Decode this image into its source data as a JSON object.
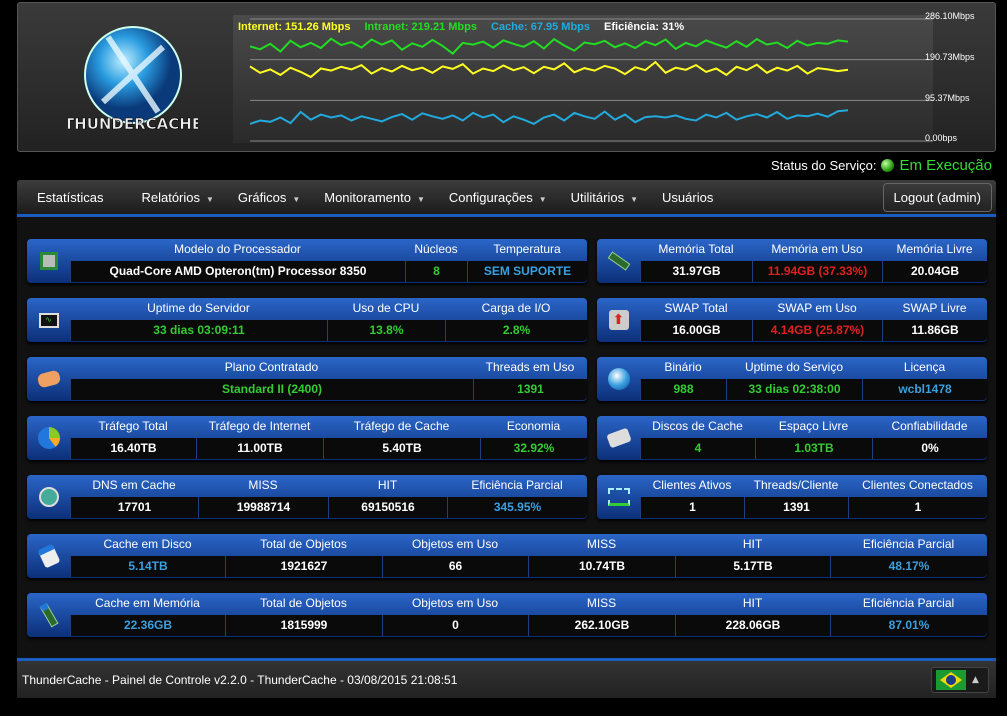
{
  "header": {
    "logo_text": "THUNDERCACHE",
    "legend": [
      {
        "label": "Internet: 151.26 Mbps",
        "color": "#ffff22"
      },
      {
        "label": "Intranet: 219.21 Mbps",
        "color": "#22dd22"
      },
      {
        "label": "Cache: 67.95 Mbps",
        "color": "#22aadd"
      },
      {
        "label": "Eficiência: 31%",
        "color": "#ffffff"
      }
    ],
    "y_labels": [
      "286.10Mbps",
      "190.73Mbps",
      "95.37Mbps",
      "0.00bps"
    ]
  },
  "chart_data": {
    "type": "line",
    "ylim": [
      0,
      286.1
    ],
    "yticks": [
      "286.10Mbps",
      "190.73Mbps",
      "95.37Mbps",
      "0.00bps"
    ],
    "grid": true,
    "legend_placement": "top-left",
    "series": [
      {
        "name": "Intranet",
        "color": "#22dd22",
        "values": [
          222,
          215,
          228,
          210,
          235,
          220,
          230,
          218,
          240,
          225,
          232,
          219,
          238,
          226,
          236,
          214,
          229,
          221,
          237,
          223,
          205,
          230,
          226,
          233,
          219,
          236,
          228,
          221,
          234,
          217,
          239,
          224,
          212,
          231,
          227,
          235,
          220,
          229,
          218,
          233,
          225,
          238,
          216,
          230,
          222,
          236,
          227,
          219,
          234,
          221,
          239,
          226,
          231,
          218,
          235,
          224,
          230,
          228,
          236,
          233
        ]
      },
      {
        "name": "Internet",
        "color": "#ffff22",
        "values": [
          175,
          160,
          168,
          155,
          172,
          162,
          150,
          170,
          165,
          174,
          168,
          178,
          158,
          171,
          163,
          176,
          166,
          172,
          160,
          175,
          169,
          180,
          158,
          170,
          164,
          177,
          166,
          173,
          159,
          174,
          168,
          182,
          161,
          171,
          165,
          176,
          170,
          157,
          173,
          166,
          185,
          160,
          172,
          167,
          178,
          162,
          170,
          155,
          174,
          166,
          179,
          160,
          172,
          165,
          176,
          158,
          171,
          168,
          164,
          167
        ]
      },
      {
        "name": "Cache",
        "color": "#22aadd",
        "values": [
          40,
          48,
          45,
          55,
          42,
          68,
          50,
          62,
          55,
          60,
          48,
          58,
          52,
          46,
          56,
          63,
          50,
          65,
          58,
          52,
          60,
          48,
          66,
          55,
          62,
          44,
          58,
          50,
          40,
          55,
          62,
          48,
          66,
          58,
          52,
          69,
          50,
          62,
          44,
          56,
          58,
          55,
          60,
          52,
          48,
          62,
          55,
          66,
          50,
          58,
          63,
          55,
          68,
          52,
          60,
          58,
          64,
          57,
          70,
          72
        ]
      }
    ]
  },
  "status": {
    "label": "Status do Serviço:",
    "value": "Em Execução"
  },
  "nav": {
    "items": [
      {
        "label": "Estatísticas",
        "dropdown": false
      },
      {
        "label": "Relatórios",
        "dropdown": true
      },
      {
        "label": "Gráficos",
        "dropdown": true
      },
      {
        "label": "Monitoramento",
        "dropdown": true
      },
      {
        "label": "Configurações",
        "dropdown": true
      },
      {
        "label": "Utilitários",
        "dropdown": true
      },
      {
        "label": "Usuários",
        "dropdown": false
      }
    ],
    "caret": "▼",
    "logout": "Logout (admin)"
  },
  "panels": [
    {
      "name": "processor",
      "icon": "cpu-icon",
      "cells": [
        {
          "h": "Modelo do Processador",
          "v": "Quad-Core AMD Opteron(tm) Processor 8350",
          "c": "white"
        },
        {
          "h": "Núcleos",
          "v": "8",
          "c": "green"
        },
        {
          "h": "Temperatura",
          "v": "SEM SUPORTE",
          "c": "blue"
        }
      ]
    },
    {
      "name": "memory",
      "icon": "memory-icon",
      "cells": [
        {
          "h": "Memória Total",
          "v": "31.97GB",
          "c": "white"
        },
        {
          "h": "Memória em Uso",
          "v": "11.94GB (37.33%)",
          "c": "red"
        },
        {
          "h": "Memória Livre",
          "v": "20.04GB",
          "c": "white"
        }
      ]
    },
    {
      "name": "uptime",
      "icon": "monitor-icon",
      "cells": [
        {
          "h": "Uptime do Servidor",
          "v": "33 dias 03:09:11",
          "c": "green"
        },
        {
          "h": "Uso de CPU",
          "v": "13.8%",
          "c": "green"
        },
        {
          "h": "Carga de I/O",
          "v": "2.8%",
          "c": "green"
        }
      ]
    },
    {
      "name": "swap",
      "icon": "swap-icon",
      "cells": [
        {
          "h": "SWAP Total",
          "v": "16.00GB",
          "c": "white"
        },
        {
          "h": "SWAP em Uso",
          "v": "4.14GB (25.87%)",
          "c": "red"
        },
        {
          "h": "SWAP Livre",
          "v": "11.86GB",
          "c": "white"
        }
      ]
    },
    {
      "name": "plan",
      "icon": "handshake-icon",
      "cells": [
        {
          "h": "Plano Contratado",
          "v": "Standard II (2400)",
          "c": "green"
        },
        {
          "h": "Threads em Uso",
          "v": "1391",
          "c": "green"
        }
      ]
    },
    {
      "name": "binary",
      "icon": "globe-icon",
      "cells": [
        {
          "h": "Binário",
          "v": "988",
          "c": "green"
        },
        {
          "h": "Uptime do Serviço",
          "v": "33 dias 02:38:00",
          "c": "green"
        },
        {
          "h": "Licença",
          "v": "wcbl1478",
          "c": "blue"
        }
      ]
    },
    {
      "name": "traffic",
      "icon": "pie-chart-icon",
      "cells": [
        {
          "h": "Tráfego Total",
          "v": "16.40TB",
          "c": "white"
        },
        {
          "h": "Tráfego de Internet",
          "v": "11.00TB",
          "c": "white"
        },
        {
          "h": "Tráfego de Cache",
          "v": "5.40TB",
          "c": "white"
        },
        {
          "h": "Economia",
          "v": "32.92%",
          "c": "green"
        }
      ]
    },
    {
      "name": "disks",
      "icon": "hard-disk-icon",
      "cells": [
        {
          "h": "Discos de Cache",
          "v": "4",
          "c": "green"
        },
        {
          "h": "Espaço Livre",
          "v": "1.03TB",
          "c": "green"
        },
        {
          "h": "Confiabilidade",
          "v": "0%",
          "c": "white"
        }
      ]
    },
    {
      "name": "dns",
      "icon": "dns-search-icon",
      "cells": [
        {
          "h": "DNS em Cache",
          "v": "17701",
          "c": "white"
        },
        {
          "h": "MISS",
          "v": "19988714",
          "c": "white"
        },
        {
          "h": "HIT",
          "v": "69150516",
          "c": "white"
        },
        {
          "h": "Eficiência Parcial",
          "v": "345.95%",
          "c": "blue"
        }
      ]
    },
    {
      "name": "clients",
      "icon": "network-icon",
      "cells": [
        {
          "h": "Clientes Ativos",
          "v": "1",
          "c": "white"
        },
        {
          "h": "Threads/Cliente",
          "v": "1391",
          "c": "white"
        },
        {
          "h": "Clientes Conectados",
          "v": "1",
          "c": "white"
        }
      ]
    },
    {
      "name": "disk-cache",
      "icon": "disk-cache-icon",
      "cells": [
        {
          "h": "Cache em Disco",
          "v": "5.14TB",
          "c": "blue"
        },
        {
          "h": "Total de Objetos",
          "v": "1921627",
          "c": "white"
        },
        {
          "h": "Objetos em Uso",
          "v": "66",
          "c": "white"
        },
        {
          "h": "MISS",
          "v": "10.74TB",
          "c": "white"
        },
        {
          "h": "HIT",
          "v": "5.17TB",
          "c": "white"
        },
        {
          "h": "Eficiência Parcial",
          "v": "48.17%",
          "c": "blue"
        }
      ]
    },
    {
      "name": "memory-cache",
      "icon": "memory-cache-icon",
      "cells": [
        {
          "h": "Cache em Memória",
          "v": "22.36GB",
          "c": "blue"
        },
        {
          "h": "Total de Objetos",
          "v": "1815999",
          "c": "white"
        },
        {
          "h": "Objetos em Uso",
          "v": "0",
          "c": "white"
        },
        {
          "h": "MISS",
          "v": "262.10GB",
          "c": "white"
        },
        {
          "h": "HIT",
          "v": "228.06GB",
          "c": "white"
        },
        {
          "h": "Eficiência Parcial",
          "v": "87.01%",
          "c": "blue"
        }
      ]
    }
  ],
  "footer": {
    "text": "ThunderCache - Painel de Controle v2.2.0 - ThunderCache - 03/08/2015 21:08:51",
    "language": "pt-BR",
    "arrow": "▲"
  }
}
